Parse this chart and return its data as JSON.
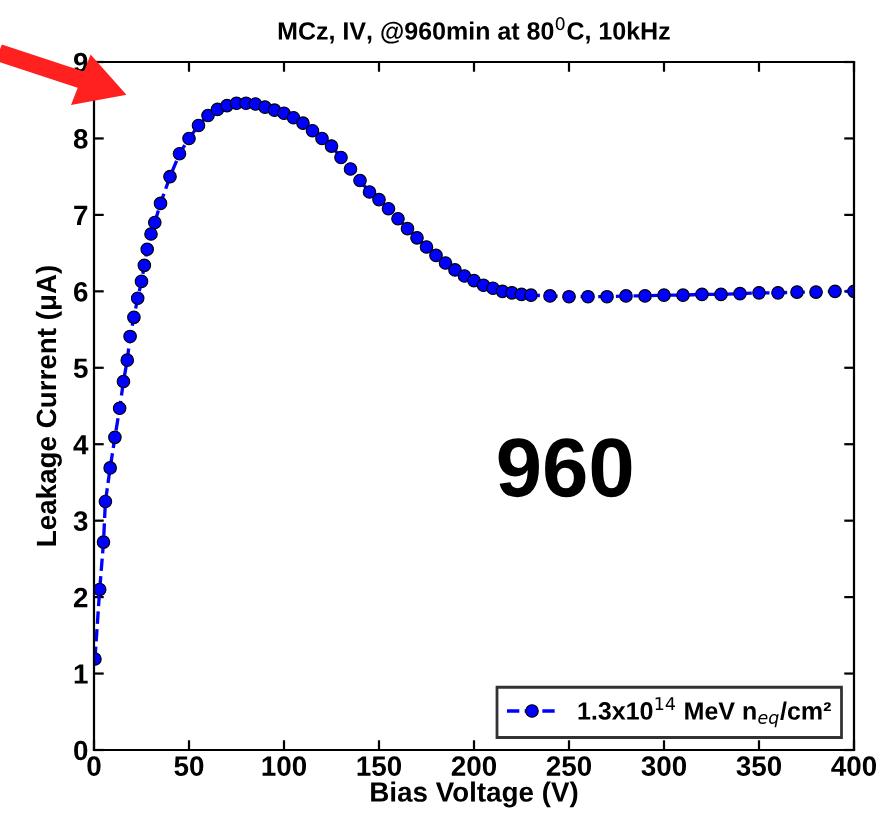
{
  "chart_data": {
    "type": "line",
    "title": "MCz, IV, @960min at 80$^{0}$C, 10kHz",
    "xlabel": "Bias Voltage (V)",
    "ylabel": "Leakage Current (μA)",
    "annotations": [
      "960"
    ],
    "x": [
      0.5,
      3,
      5,
      6,
      8.5,
      11,
      13.5,
      15.5,
      17.5,
      19,
      21,
      23,
      25,
      26.5,
      28,
      30,
      32,
      35,
      40,
      45,
      50,
      55,
      60,
      65,
      70,
      75,
      80,
      85,
      90,
      95,
      100,
      105,
      110,
      115,
      120,
      125,
      130,
      135,
      140,
      145,
      150,
      155,
      160,
      165,
      170,
      175,
      180,
      185,
      190,
      195,
      200,
      205,
      210,
      215,
      220,
      225,
      230,
      240,
      250,
      260,
      270,
      280,
      290,
      300,
      310,
      320,
      330,
      340,
      350,
      360,
      370,
      380,
      390,
      400
    ],
    "series": [
      {
        "name": "1.3x10$^{14}$ MeV n$_{eq}$/cm²",
        "color": "#0000ff",
        "values": [
          1.19,
          2.1,
          2.72,
          3.25,
          3.69,
          4.09,
          4.47,
          4.82,
          5.1,
          5.41,
          5.66,
          5.91,
          6.13,
          6.34,
          6.55,
          6.75,
          6.9,
          7.15,
          7.5,
          7.8,
          8.0,
          8.17,
          8.3,
          8.38,
          8.43,
          8.46,
          8.46,
          8.45,
          8.41,
          8.37,
          8.33,
          8.27,
          8.2,
          8.1,
          8.0,
          7.9,
          7.75,
          7.6,
          7.45,
          7.3,
          7.2,
          7.08,
          6.95,
          6.82,
          6.7,
          6.58,
          6.47,
          6.37,
          6.28,
          6.2,
          6.14,
          6.08,
          6.04,
          6.0,
          5.98,
          5.96,
          5.95,
          5.94,
          5.93,
          5.93,
          5.93,
          5.94,
          5.94,
          5.95,
          5.95,
          5.96,
          5.96,
          5.97,
          5.98,
          5.98,
          5.99,
          5.99,
          6.0,
          6.0
        ]
      }
    ],
    "xlim": [
      0,
      400
    ],
    "ylim": [
      0,
      9
    ],
    "xticks": [
      0,
      50,
      100,
      150,
      200,
      250,
      300,
      350,
      400
    ],
    "yticks": [
      0,
      1,
      2,
      3,
      4,
      5,
      6,
      7,
      8,
      9
    ],
    "grid": false,
    "legend": "bottom right",
    "marker": "circle",
    "line_style": "dashed"
  }
}
